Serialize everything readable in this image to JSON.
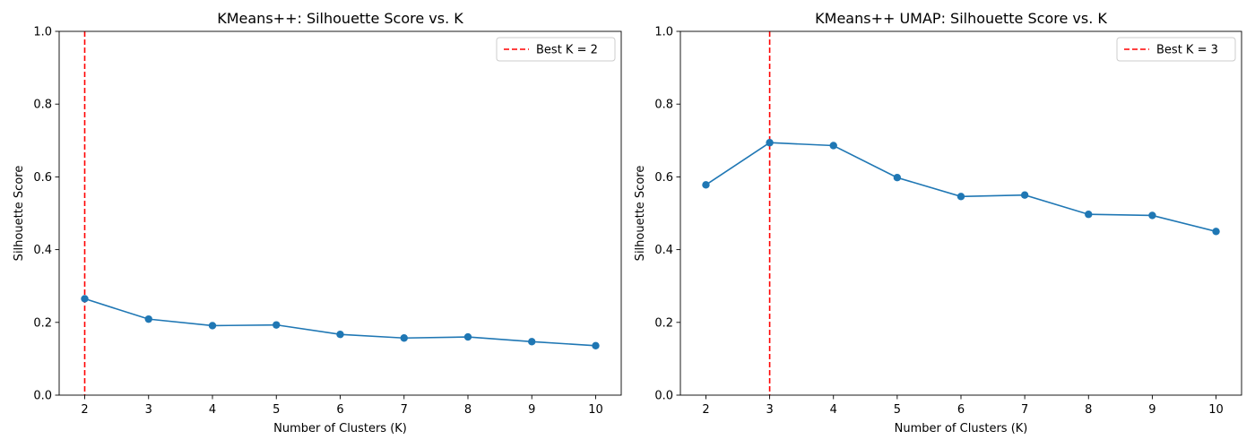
{
  "chart_data": [
    {
      "type": "line",
      "title": "KMeans++: Silhouette Score vs. K",
      "xlabel": "Number of Clusters (K)",
      "ylabel": "Silhouette Score",
      "x": [
        2,
        3,
        4,
        5,
        6,
        7,
        8,
        9,
        10
      ],
      "xticks": [
        "2",
        "3",
        "4",
        "5",
        "6",
        "7",
        "8",
        "9",
        "10"
      ],
      "xlim": [
        1.6,
        10.4
      ],
      "yticks": [
        "0.0",
        "0.2",
        "0.4",
        "0.6",
        "0.8",
        "1.0"
      ],
      "ylim": [
        0.0,
        1.0
      ],
      "series": [
        {
          "values": [
            0.265,
            0.209,
            0.191,
            0.193,
            0.167,
            0.157,
            0.16,
            0.147,
            0.136
          ],
          "color": "#1f77b4",
          "marker": "circle"
        }
      ],
      "vline": {
        "x": 2,
        "label": "Best K = 2",
        "color": "#ff0000",
        "style": "dashed"
      },
      "legend": "top-right",
      "grid": false
    },
    {
      "type": "line",
      "title": "KMeans++ UMAP: Silhouette Score vs. K",
      "xlabel": "Number of Clusters (K)",
      "ylabel": "Silhouette Score",
      "x": [
        2,
        3,
        4,
        5,
        6,
        7,
        8,
        9,
        10
      ],
      "xticks": [
        "2",
        "3",
        "4",
        "5",
        "6",
        "7",
        "8",
        "9",
        "10"
      ],
      "xlim": [
        1.6,
        10.4
      ],
      "yticks": [
        "0.0",
        "0.2",
        "0.4",
        "0.6",
        "0.8",
        "1.0"
      ],
      "ylim": [
        0.0,
        1.0
      ],
      "series": [
        {
          "values": [
            0.578,
            0.694,
            0.686,
            0.598,
            0.546,
            0.55,
            0.497,
            0.494,
            0.45
          ],
          "color": "#1f77b4",
          "marker": "circle"
        }
      ],
      "vline": {
        "x": 3,
        "label": "Best K = 3",
        "color": "#ff0000",
        "style": "dashed"
      },
      "legend": "top-right",
      "grid": false
    }
  ]
}
